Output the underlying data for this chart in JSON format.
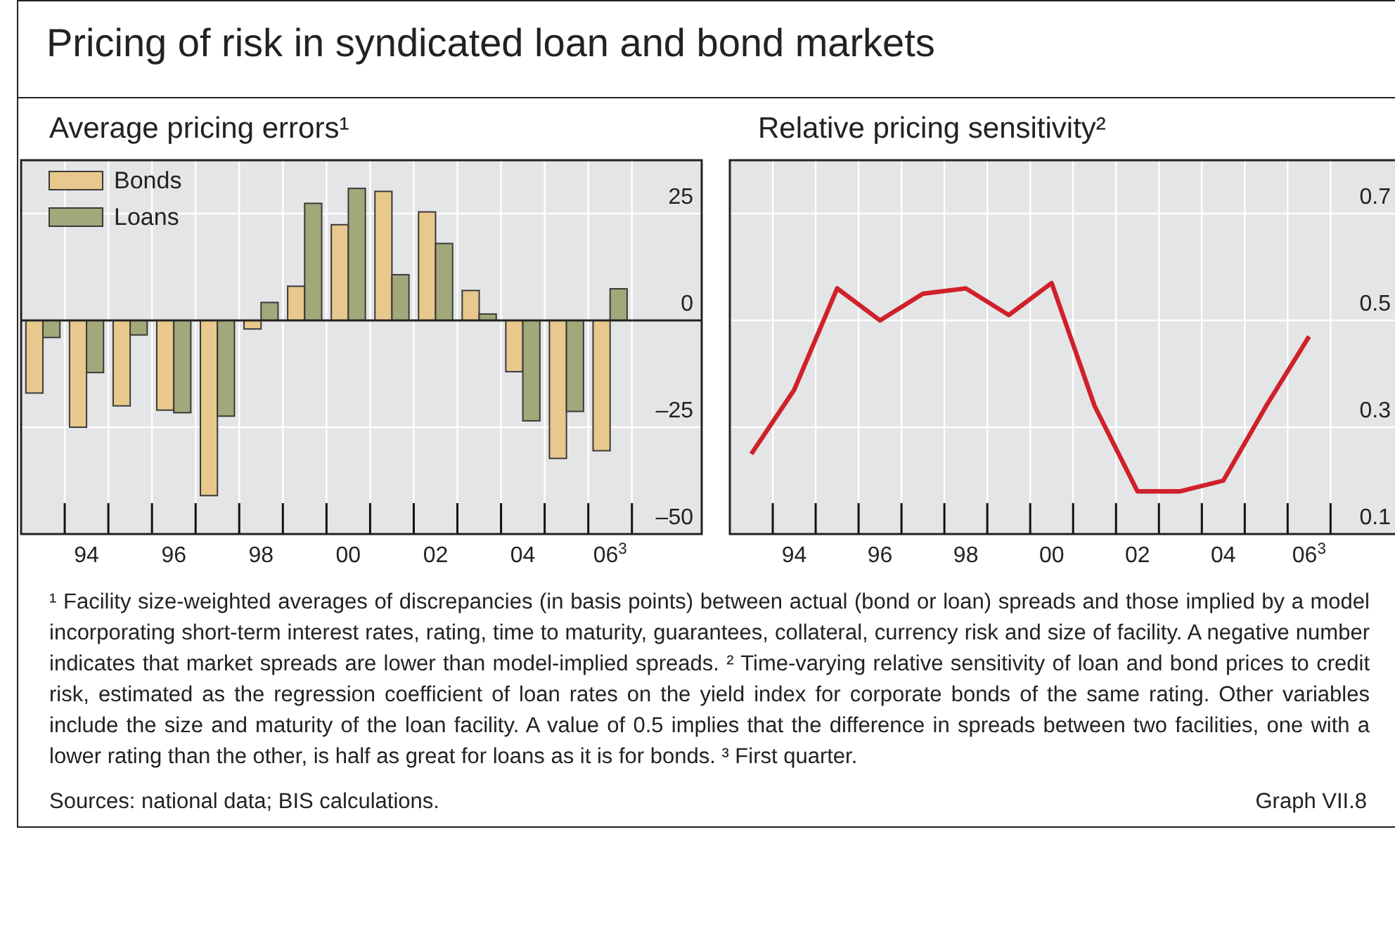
{
  "chart_data": [
    {
      "type": "bar",
      "title": "Pricing of risk in syndicated loan and bond markets",
      "subtitle": "Average pricing errors¹",
      "categories": [
        null,
        "94",
        null,
        "96",
        null,
        "98",
        null,
        "00",
        null,
        "02",
        null,
        "04",
        null,
        "06$^{3}$"
      ],
      "series": [
        {
          "name": "Bonds",
          "color": "#e8c88c",
          "values": [
            -17,
            -25,
            -20,
            -21,
            -41,
            -2,
            8,
            22.4,
            30.2,
            25.4,
            7,
            -12,
            -32.3,
            -30.5
          ]
        },
        {
          "name": "Loans",
          "color": "#a3a87a",
          "values": [
            -4,
            -12.2,
            -3.4,
            -21.6,
            -22.4,
            4.2,
            27.4,
            30.9,
            10.7,
            18,
            1.5,
            -23.5,
            -21.3,
            7.4
          ]
        }
      ],
      "ylim": [
        -50,
        37.5
      ],
      "yticks": [
        {
          "value": -50,
          "label": "–50"
        },
        {
          "value": -25,
          "label": "–25"
        },
        0,
        25
      ],
      "grid": true,
      "legend": "top left",
      "annotations": [
        "¹ Facility size-weighted averages of discrepancies (in basis points) between actual (bond or loan) spreads and those implied by a model incorporating short-term interest rates, rating, time to maturity, guarantees, collateral, currency risk and size of facility. A negative number indicates that market spreads are lower than model-implied spreads.",
        "² Time-varying relative sensitivity of loan and bond prices to credit risk, estimated as the regression coefficient of loan rates on the yield index for corporate bonds of the same rating. Other variables include the size and maturity of the loan facility. A value of 0.5 implies that the difference in spreads between two facilities, one with a lower rating than the other, is half as great for loans as it is for bonds.",
        "³ First quarter.",
        "Sources: national data; BIS calculations.",
        "Graph VII.8"
      ]
    },
    {
      "type": "line",
      "subtitle": "Relative pricing sensitivity²",
      "categories": [
        null,
        "94",
        null,
        "96",
        null,
        "98",
        null,
        "00",
        null,
        "02",
        null,
        "04",
        null,
        "06$^{3}$"
      ],
      "series": [
        {
          "color": "#d0212b",
          "values": [
            0.25,
            0.37,
            0.56,
            0.5,
            0.55,
            0.56,
            0.51,
            0.57,
            0.34,
            0.18,
            0.18,
            0.2,
            0.34,
            0.47
          ]
        }
      ],
      "ylim": [
        0.1,
        0.8
      ],
      "yticks": [
        0.1,
        0.3,
        0.5,
        0.7
      ],
      "grid": true
    }
  ]
}
